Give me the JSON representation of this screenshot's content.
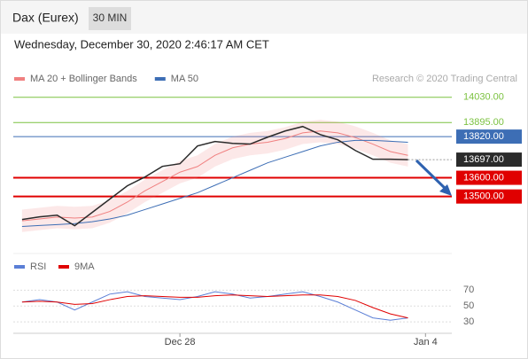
{
  "chart_data": {
    "type": "line",
    "instrument": "Dax (Eurex)",
    "timeframe": "30 MIN",
    "subtitle": "Wednesday, December 30, 2020 2:46:17 AM CET",
    "credit": "Research © 2020 Trading Central",
    "categories": [
      null,
      null,
      null,
      null,
      null,
      null,
      null,
      null,
      null,
      "Dec 28",
      null,
      null,
      null,
      null,
      null,
      null,
      null,
      null,
      null,
      null,
      null,
      null,
      null,
      "Jan 4",
      null
    ],
    "values": [
      13377,
      13391,
      13400,
      13344,
      13415,
      13486,
      13557,
      13604,
      13661,
      13675,
      13770,
      13794,
      13784,
      13780,
      13817,
      13850,
      13874,
      13831,
      13803,
      13746,
      13699,
      13699,
      13697,
      null,
      null
    ],
    "color": "#2b2b2b",
    "series": [
      {
        "name": "MA 20 + Bollinger Bands",
        "color": "#f08080",
        "values": [
          13370,
          13380,
          13390,
          13385,
          13390,
          13420,
          13470,
          13530,
          13580,
          13630,
          13660,
          13720,
          13760,
          13780,
          13790,
          13810,
          13840,
          13850,
          13840,
          13815,
          13780,
          13740,
          13720,
          null,
          null
        ]
      },
      {
        "name": "MA 50",
        "color": "#3d6eb5",
        "values": [
          13340,
          13345,
          13350,
          13355,
          13365,
          13380,
          13400,
          13430,
          13460,
          13490,
          13520,
          13560,
          13600,
          13640,
          13680,
          13710,
          13740,
          13770,
          13790,
          13800,
          13800,
          13795,
          13790,
          null,
          null
        ]
      }
    ],
    "ylim": [
      13200,
      14100
    ],
    "levels": [
      {
        "value": 14030,
        "label": "14030.00",
        "color": "#7cc241",
        "style": "text"
      },
      {
        "value": 13895,
        "label": "13895.00",
        "color": "#7cc241",
        "style": "text"
      },
      {
        "value": 13820,
        "label": "13820.00",
        "color": "#3d6eb5",
        "style": "box"
      },
      {
        "value": 13697,
        "label": "13697.00",
        "color": "#2b2b2b",
        "style": "current"
      },
      {
        "value": 13600,
        "label": "13600.00",
        "color": "#e00000",
        "style": "box"
      },
      {
        "value": 13500,
        "label": "13500.00",
        "color": "#e00000",
        "style": "box"
      }
    ],
    "rsi": {
      "series": [
        {
          "name": "RSI",
          "color": "#5b7fd6",
          "values": [
            55,
            58,
            55,
            45,
            55,
            65,
            68,
            62,
            60,
            58,
            62,
            68,
            65,
            60,
            62,
            65,
            68,
            62,
            55,
            45,
            35,
            32,
            35,
            null,
            null
          ]
        },
        {
          "name": "9MA",
          "color": "#e00000",
          "values": [
            55,
            56,
            55,
            52,
            53,
            58,
            62,
            63,
            62,
            61,
            61,
            63,
            64,
            63,
            62,
            63,
            64,
            64,
            62,
            57,
            48,
            40,
            35,
            null,
            null
          ]
        }
      ],
      "ylim": [
        20,
        95
      ],
      "yticks": [
        70,
        50,
        30
      ]
    }
  }
}
